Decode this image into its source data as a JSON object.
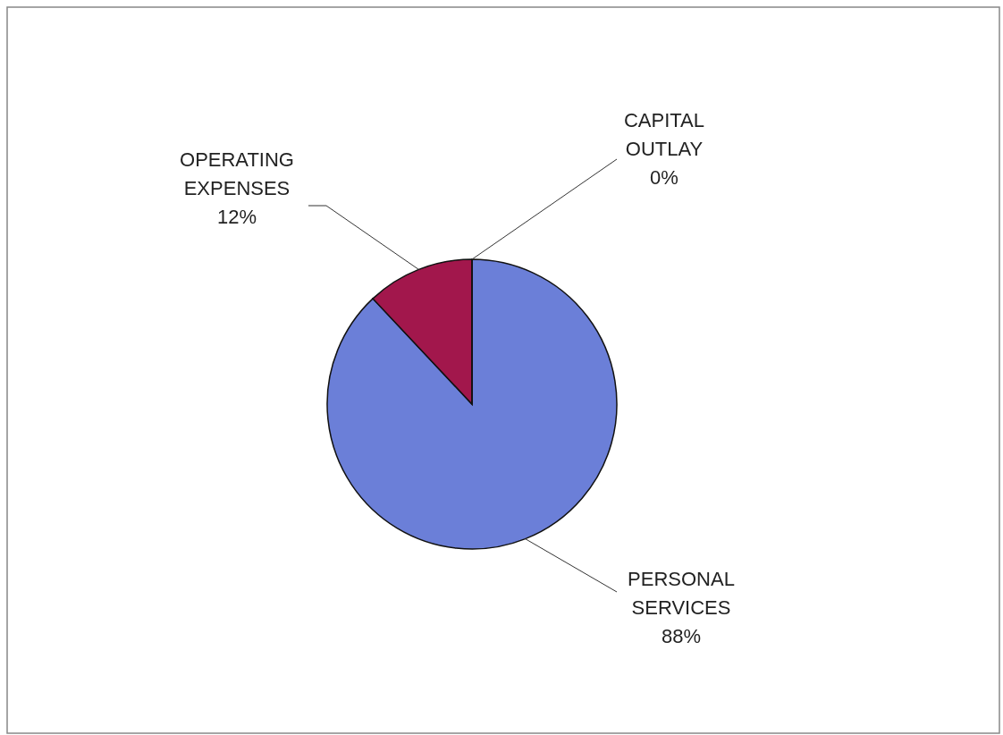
{
  "chart_data": {
    "type": "pie",
    "categories": [
      "PERSONAL SERVICES",
      "OPERATING EXPENSES",
      "CAPITAL OUTLAY"
    ],
    "values": [
      88,
      12,
      0
    ],
    "colors": [
      "#6b7fd8",
      "#a2174c",
      "#c0c8f0"
    ],
    "value_labels": [
      "88%",
      "12%",
      "0%"
    ],
    "legend": false
  }
}
